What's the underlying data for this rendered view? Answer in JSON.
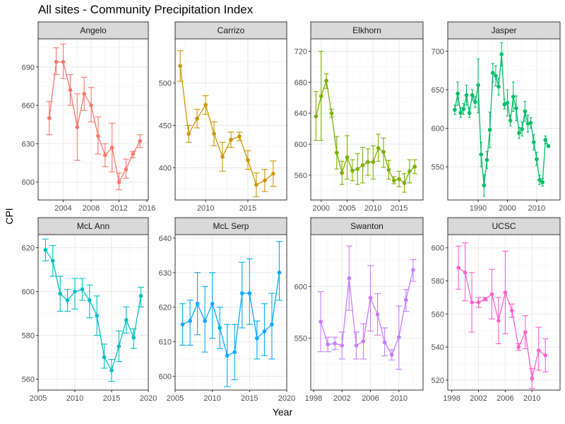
{
  "chart_data": {
    "type": "line",
    "title": "All sites - Community Precipitation Index",
    "xlabel": "Year",
    "ylabel": "CPI",
    "grid": true,
    "error_bars": true,
    "panels": [
      {
        "name": "Angelo",
        "color": "#F8766D",
        "xlim": [
          2000.4,
          2016.2
        ],
        "ylim": [
          586,
          712
        ],
        "xticks": [
          2004,
          2008,
          2012,
          2016
        ],
        "yticks": [
          600,
          630,
          660,
          690
        ],
        "points": [
          {
            "x": 2002,
            "y": 650,
            "lo": 637,
            "hi": 663
          },
          {
            "x": 2003,
            "y": 694,
            "lo": 684,
            "hi": 705
          },
          {
            "x": 2004,
            "y": 694,
            "lo": 681,
            "hi": 708
          },
          {
            "x": 2005,
            "y": 672,
            "lo": 660,
            "hi": 684
          },
          {
            "x": 2006,
            "y": 643,
            "lo": 617,
            "hi": 669
          },
          {
            "x": 2007,
            "y": 669,
            "lo": 656,
            "hi": 682
          },
          {
            "x": 2008,
            "y": 660,
            "lo": 647,
            "hi": 674
          },
          {
            "x": 2009,
            "y": 636,
            "lo": 622,
            "hi": 651
          },
          {
            "x": 2010,
            "y": 621,
            "lo": 612,
            "hi": 630
          },
          {
            "x": 2011,
            "y": 627,
            "lo": 608,
            "hi": 646
          },
          {
            "x": 2012,
            "y": 600,
            "lo": 594,
            "hi": 607
          },
          {
            "x": 2013,
            "y": 610,
            "lo": 603,
            "hi": 618
          },
          {
            "x": 2014,
            "y": 622,
            "lo": 619,
            "hi": 624
          },
          {
            "x": 2015,
            "y": 632,
            "lo": 627,
            "hi": 637
          }
        ]
      },
      {
        "name": "Carrizo",
        "color": "#CD9600",
        "xlim": [
          2006.4,
          2019.6
        ],
        "ylim": [
          362,
          552
        ],
        "xticks": [
          2010,
          2015
        ],
        "yticks": [
          400,
          450,
          500
        ],
        "points": [
          {
            "x": 2007,
            "y": 520,
            "lo": 502,
            "hi": 538
          },
          {
            "x": 2008,
            "y": 440,
            "lo": 430,
            "hi": 450
          },
          {
            "x": 2009,
            "y": 458,
            "lo": 447,
            "hi": 469
          },
          {
            "x": 2010,
            "y": 474,
            "lo": 463,
            "hi": 485
          },
          {
            "x": 2011,
            "y": 440,
            "lo": 426,
            "hi": 454
          },
          {
            "x": 2012,
            "y": 413,
            "lo": 396,
            "hi": 430
          },
          {
            "x": 2013,
            "y": 433,
            "lo": 424,
            "hi": 442
          },
          {
            "x": 2014,
            "y": 437,
            "lo": 432,
            "hi": 442
          },
          {
            "x": 2015,
            "y": 409,
            "lo": 398,
            "hi": 420
          },
          {
            "x": 2016,
            "y": 380,
            "lo": 366,
            "hi": 394
          },
          {
            "x": 2017,
            "y": 385,
            "lo": 372,
            "hi": 398
          },
          {
            "x": 2018,
            "y": 393,
            "lo": 378,
            "hi": 408
          }
        ]
      },
      {
        "name": "Elkhorn",
        "color": "#7CAE00",
        "xlim": [
          1998.0,
          2019.6
        ],
        "ylim": [
          528,
          736
        ],
        "xticks": [
          2000,
          2005,
          2010,
          2015
        ],
        "yticks": [
          560,
          600,
          640,
          680,
          720
        ],
        "points": [
          {
            "x": 1999,
            "y": 636,
            "lo": 605,
            "hi": 668
          },
          {
            "x": 2000,
            "y": 662,
            "lo": 605,
            "hi": 720
          },
          {
            "x": 2001,
            "y": 682,
            "lo": 672,
            "hi": 691
          },
          {
            "x": 2002,
            "y": 640,
            "lo": 635,
            "hi": 645
          },
          {
            "x": 2003,
            "y": 589,
            "lo": 568,
            "hi": 610
          },
          {
            "x": 2004,
            "y": 563,
            "lo": 548,
            "hi": 578
          },
          {
            "x": 2005,
            "y": 583,
            "lo": 555,
            "hi": 611
          },
          {
            "x": 2006,
            "y": 566,
            "lo": 553,
            "hi": 580
          },
          {
            "x": 2007,
            "y": 568,
            "lo": 548,
            "hi": 588
          },
          {
            "x": 2008,
            "y": 573,
            "lo": 550,
            "hi": 596
          },
          {
            "x": 2009,
            "y": 577,
            "lo": 560,
            "hi": 594
          },
          {
            "x": 2010,
            "y": 577,
            "lo": 555,
            "hi": 598
          },
          {
            "x": 2011,
            "y": 595,
            "lo": 578,
            "hi": 613
          },
          {
            "x": 2012,
            "y": 590,
            "lo": 570,
            "hi": 608
          },
          {
            "x": 2013,
            "y": 567,
            "lo": 555,
            "hi": 579
          },
          {
            "x": 2014,
            "y": 553,
            "lo": 549,
            "hi": 558
          },
          {
            "x": 2015,
            "y": 555,
            "lo": 545,
            "hi": 565
          },
          {
            "x": 2016,
            "y": 550,
            "lo": 538,
            "hi": 562
          },
          {
            "x": 2017,
            "y": 565,
            "lo": 550,
            "hi": 580
          },
          {
            "x": 2018,
            "y": 571,
            "lo": 562,
            "hi": 580
          }
        ]
      },
      {
        "name": "Jasper",
        "color": "#00BE67",
        "xlim": [
          1979.6,
          2018.0
        ],
        "ylim": [
          507,
          716
        ],
        "xticks": [
          1990,
          2000,
          2010
        ],
        "yticks": [
          550,
          600,
          650,
          700
        ],
        "points": [
          {
            "x": 1982,
            "y": 624,
            "lo": 618,
            "hi": 630
          },
          {
            "x": 1983,
            "y": 645,
            "lo": 630,
            "hi": 660
          },
          {
            "x": 1984,
            "y": 620,
            "lo": 614,
            "hi": 627
          },
          {
            "x": 1985,
            "y": 625,
            "lo": 618,
            "hi": 632
          },
          {
            "x": 1986,
            "y": 643,
            "lo": 630,
            "hi": 656
          },
          {
            "x": 1987,
            "y": 620,
            "lo": 614,
            "hi": 627
          },
          {
            "x": 1988,
            "y": 643,
            "lo": 636,
            "hi": 650
          },
          {
            "x": 1989,
            "y": 634,
            "lo": 627,
            "hi": 641
          },
          {
            "x": 1990,
            "y": 656,
            "lo": 620,
            "hi": 690
          },
          {
            "x": 1991,
            "y": 566,
            "lo": 550,
            "hi": 582
          },
          {
            "x": 1992,
            "y": 526,
            "lo": 512,
            "hi": 540
          },
          {
            "x": 1993,
            "y": 559,
            "lo": 548,
            "hi": 570
          },
          {
            "x": 1994,
            "y": 598,
            "lo": 575,
            "hi": 621
          },
          {
            "x": 1995,
            "y": 672,
            "lo": 660,
            "hi": 684
          },
          {
            "x": 1996,
            "y": 668,
            "lo": 655,
            "hi": 681
          },
          {
            "x": 1997,
            "y": 654,
            "lo": 643,
            "hi": 665
          },
          {
            "x": 1998,
            "y": 696,
            "lo": 681,
            "hi": 711
          },
          {
            "x": 1999,
            "y": 631,
            "lo": 625,
            "hi": 638
          },
          {
            "x": 2000,
            "y": 633,
            "lo": 616,
            "hi": 650
          },
          {
            "x": 2001,
            "y": 610,
            "lo": 603,
            "hi": 617
          },
          {
            "x": 2002,
            "y": 641,
            "lo": 622,
            "hi": 660
          },
          {
            "x": 2003,
            "y": 626,
            "lo": 610,
            "hi": 642
          },
          {
            "x": 2004,
            "y": 594,
            "lo": 587,
            "hi": 601
          },
          {
            "x": 2005,
            "y": 599,
            "lo": 590,
            "hi": 608
          },
          {
            "x": 2006,
            "y": 622,
            "lo": 609,
            "hi": 635
          },
          {
            "x": 2007,
            "y": 606,
            "lo": 595,
            "hi": 617
          },
          {
            "x": 2008,
            "y": 607,
            "lo": 600,
            "hi": 614
          },
          {
            "x": 2009,
            "y": 582,
            "lo": 572,
            "hi": 592
          },
          {
            "x": 2010,
            "y": 560,
            "lo": 552,
            "hi": 569
          },
          {
            "x": 2011,
            "y": 533,
            "lo": 527,
            "hi": 539
          },
          {
            "x": 2012,
            "y": 530,
            "lo": 525,
            "hi": 535
          },
          {
            "x": 2013,
            "y": 585,
            "lo": 580,
            "hi": 590
          },
          {
            "x": 2014,
            "y": 577,
            "lo": 575,
            "hi": 579
          }
        ]
      },
      {
        "name": "McL Ann",
        "color": "#00BFC4",
        "xlim": [
          2005.0,
          2020.0
        ],
        "ylim": [
          555,
          626
        ],
        "xticks": [
          2005,
          2010,
          2015,
          2020
        ],
        "yticks": [
          560,
          580,
          600,
          620
        ],
        "points": [
          {
            "x": 2006,
            "y": 619,
            "lo": 614,
            "hi": 624
          },
          {
            "x": 2007,
            "y": 614,
            "lo": 607,
            "hi": 621
          },
          {
            "x": 2008,
            "y": 599,
            "lo": 591,
            "hi": 607
          },
          {
            "x": 2009,
            "y": 596,
            "lo": 591,
            "hi": 601
          },
          {
            "x": 2010,
            "y": 600,
            "lo": 592,
            "hi": 606
          },
          {
            "x": 2011,
            "y": 601,
            "lo": 596,
            "hi": 606
          },
          {
            "x": 2012,
            "y": 596,
            "lo": 588,
            "hi": 603
          },
          {
            "x": 2013,
            "y": 589,
            "lo": 580,
            "hi": 598
          },
          {
            "x": 2014,
            "y": 570,
            "lo": 565,
            "hi": 576
          },
          {
            "x": 2015,
            "y": 564,
            "lo": 559,
            "hi": 569
          },
          {
            "x": 2016,
            "y": 575,
            "lo": 568,
            "hi": 582
          },
          {
            "x": 2017,
            "y": 587,
            "lo": 581,
            "hi": 593
          },
          {
            "x": 2018,
            "y": 579,
            "lo": 574,
            "hi": 583
          },
          {
            "x": 2019,
            "y": 598,
            "lo": 593,
            "hi": 602
          }
        ]
      },
      {
        "name": "McL Serp",
        "color": "#00A9FF",
        "xlim": [
          2005.0,
          2020.0
        ],
        "ylim": [
          596,
          641
        ],
        "xticks": [
          2005,
          2010,
          2015,
          2020
        ],
        "yticks": [
          600,
          610,
          620,
          630,
          640
        ],
        "points": [
          {
            "x": 2006,
            "y": 615,
            "lo": 609,
            "hi": 621
          },
          {
            "x": 2007,
            "y": 616,
            "lo": 609,
            "hi": 622
          },
          {
            "x": 2008,
            "y": 621,
            "lo": 612,
            "hi": 630
          },
          {
            "x": 2009,
            "y": 616,
            "lo": 607,
            "hi": 626
          },
          {
            "x": 2010,
            "y": 621,
            "lo": 611,
            "hi": 630
          },
          {
            "x": 2011,
            "y": 614,
            "lo": 608,
            "hi": 620
          },
          {
            "x": 2012,
            "y": 606,
            "lo": 597,
            "hi": 615
          },
          {
            "x": 2013,
            "y": 607,
            "lo": 599,
            "hi": 615
          },
          {
            "x": 2014,
            "y": 624,
            "lo": 614,
            "hi": 633
          },
          {
            "x": 2015,
            "y": 624,
            "lo": 615,
            "hi": 634
          },
          {
            "x": 2016,
            "y": 611,
            "lo": 605,
            "hi": 616
          },
          {
            "x": 2017,
            "y": 613,
            "lo": 606,
            "hi": 621
          },
          {
            "x": 2018,
            "y": 615,
            "lo": 605,
            "hi": 624
          },
          {
            "x": 2019,
            "y": 630,
            "lo": 622,
            "hi": 639
          }
        ]
      },
      {
        "name": "Swanton",
        "color": "#C77CFF",
        "xlim": [
          1997.6,
          2013.4
        ],
        "ylim": [
          500,
          650
        ],
        "xticks": [
          1998,
          2002,
          2006,
          2010
        ],
        "yticks": [
          550,
          600
        ],
        "points": [
          {
            "x": 1999,
            "y": 566,
            "lo": 537,
            "hi": 595
          },
          {
            "x": 2000,
            "y": 544,
            "lo": 537,
            "hi": 551
          },
          {
            "x": 2001,
            "y": 545,
            "lo": 539,
            "hi": 551
          },
          {
            "x": 2002,
            "y": 543,
            "lo": 530,
            "hi": 556
          },
          {
            "x": 2003,
            "y": 608,
            "lo": 577,
            "hi": 639
          },
          {
            "x": 2004,
            "y": 543,
            "lo": 530,
            "hi": 556
          },
          {
            "x": 2005,
            "y": 547,
            "lo": 530,
            "hi": 564
          },
          {
            "x": 2006,
            "y": 589,
            "lo": 557,
            "hi": 620
          },
          {
            "x": 2007,
            "y": 573,
            "lo": 553,
            "hi": 593
          },
          {
            "x": 2008,
            "y": 546,
            "lo": 533,
            "hi": 560
          },
          {
            "x": 2009,
            "y": 534,
            "lo": 529,
            "hi": 539
          },
          {
            "x": 2010,
            "y": 551,
            "lo": 520,
            "hi": 581
          },
          {
            "x": 2011,
            "y": 587,
            "lo": 576,
            "hi": 597
          },
          {
            "x": 2012,
            "y": 616,
            "lo": 605,
            "hi": 626
          }
        ]
      },
      {
        "name": "UCSC",
        "color": "#FF61CC",
        "xlim": [
          1997.4,
          2014.2
        ],
        "ylim": [
          514,
          608
        ],
        "xticks": [
          1998,
          2002,
          2006,
          2010
        ],
        "yticks": [
          520,
          540,
          560,
          580,
          600
        ],
        "points": [
          {
            "x": 1999,
            "y": 588,
            "lo": 575,
            "hi": 601
          },
          {
            "x": 2000,
            "y": 585,
            "lo": 568,
            "hi": 603
          },
          {
            "x": 2001,
            "y": 567,
            "lo": 549,
            "hi": 585
          },
          {
            "x": 2002,
            "y": 567,
            "lo": 564,
            "hi": 570
          },
          {
            "x": 2003,
            "y": 569,
            "lo": 568,
            "hi": 570
          },
          {
            "x": 2004,
            "y": 572,
            "lo": 557,
            "hi": 587
          },
          {
            "x": 2005,
            "y": 556,
            "lo": 542,
            "hi": 570
          },
          {
            "x": 2006,
            "y": 573,
            "lo": 548,
            "hi": 598
          },
          {
            "x": 2007,
            "y": 562,
            "lo": 558,
            "hi": 566
          },
          {
            "x": 2008,
            "y": 540,
            "lo": 538,
            "hi": 542
          },
          {
            "x": 2009,
            "y": 549,
            "lo": 539,
            "hi": 559
          },
          {
            "x": 2010,
            "y": 521,
            "lo": 515,
            "hi": 527
          },
          {
            "x": 2011,
            "y": 538,
            "lo": 526,
            "hi": 552
          },
          {
            "x": 2012,
            "y": 535,
            "lo": 525,
            "hi": 545
          }
        ]
      }
    ]
  }
}
